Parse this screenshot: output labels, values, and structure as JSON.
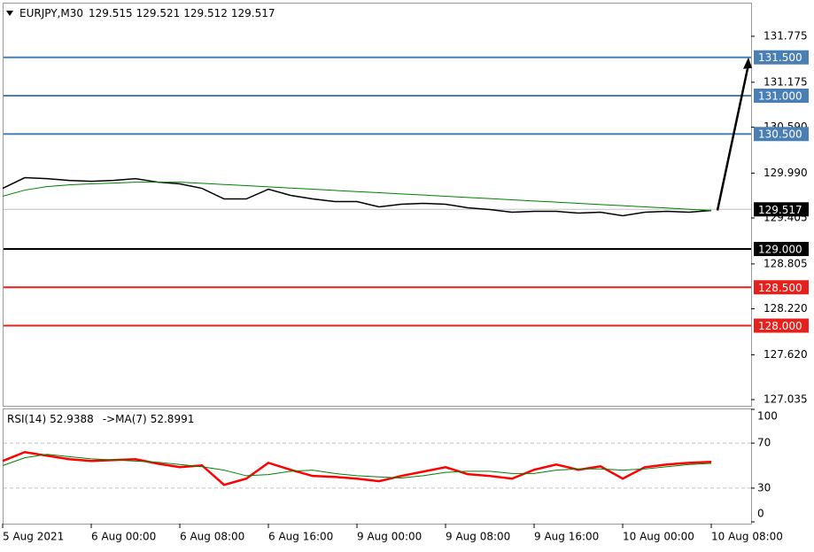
{
  "chart_data": [
    {
      "type": "line",
      "symbol": "EURJPY,M30",
      "quote": [
        129.515,
        129.521,
        129.512,
        129.517
      ],
      "categories": [
        "5 Aug 2021",
        null,
        null,
        null,
        "6 Aug 00:00",
        null,
        null,
        null,
        "6 Aug 08:00",
        null,
        null,
        null,
        "6 Aug 16:00",
        null,
        null,
        null,
        "9 Aug 00:00",
        null,
        null,
        null,
        "9 Aug 08:00",
        null,
        null,
        null,
        "9 Aug 16:00",
        null,
        null,
        null,
        "10 Aug 00:00",
        null,
        null,
        null,
        "10 Aug 08:00"
      ],
      "series": [
        {
          "color": "#000000",
          "values": [
            129.791,
            129.93,
            129.918,
            129.895,
            129.883,
            129.895,
            129.918,
            129.872,
            129.849,
            129.791,
            129.653,
            129.653,
            129.78,
            129.699,
            129.653,
            129.618,
            129.618,
            129.549,
            129.584,
            129.595,
            129.584,
            129.537,
            129.514,
            129.48,
            129.491,
            129.491,
            129.468,
            129.48,
            129.434,
            129.48,
            129.491,
            129.48,
            129.503
          ]
        },
        {
          "color": "#008000",
          "values": [
            129.688,
            129.768,
            129.814,
            129.837,
            129.849,
            129.86,
            129.872,
            129.872,
            129.872,
            129.857,
            129.841,
            129.826,
            129.81,
            129.795,
            129.78,
            129.764,
            129.749,
            129.734,
            129.718,
            129.703,
            129.688,
            129.672,
            129.657,
            129.641,
            129.626,
            129.611,
            129.595,
            129.58,
            129.565,
            129.549,
            129.534,
            129.518,
            129.503
          ]
        }
      ],
      "ylim": [
        126.954,
        132.202
      ],
      "yticks": [
        131.775,
        131.175,
        {
          "value": 130.59,
          "label": "130.590"
        },
        {
          "value": 129.99,
          "label": "129.990"
        },
        129.405,
        128.805,
        {
          "value": 128.22,
          "label": "128.220"
        },
        {
          "value": 127.62,
          "label": "127.620"
        },
        127.035
      ],
      "levels": [
        {
          "value": 131.5,
          "label": "131.500",
          "color": "#4a7fb5"
        },
        {
          "value": 131,
          "label": "131.000",
          "color": "#4a7fb5"
        },
        {
          "value": 130.5,
          "label": "130.500",
          "color": "#4a7fb5"
        },
        {
          "value": 129,
          "label": "129.000",
          "color": "#000000"
        },
        {
          "value": 128.5,
          "label": "128.500",
          "color": "#e8201c"
        },
        {
          "value": 128,
          "label": "128.000",
          "color": "#e8201c"
        }
      ],
      "current_price": {
        "value": 129.517,
        "label": "129.517"
      }
    },
    {
      "type": "line",
      "indicator": "RSI(14)",
      "indicator_value": 52.9388,
      "ma_label": "->MA(7)",
      "ma_value": 52.8991,
      "series": [
        {
          "color": "#ff0000",
          "values": [
            54.1,
            62.0,
            58.8,
            55.7,
            54.1,
            54.9,
            55.7,
            51.8,
            48.6,
            50.2,
            32.9,
            38.4,
            52.5,
            46.3,
            40.8,
            40.0,
            38.4,
            36.1,
            40.8,
            44.7,
            48.6,
            42.4,
            40.8,
            38.4,
            46.3,
            51.0,
            46.3,
            49.4,
            38.4,
            48.6,
            51.0,
            52.5,
            53.3
          ]
        },
        {
          "color": "#008000",
          "values": [
            50,
            57,
            60,
            58,
            56,
            55,
            54,
            53,
            51,
            49,
            46,
            41,
            42,
            45,
            46,
            43,
            41,
            40,
            39,
            41,
            44,
            45,
            45,
            43,
            43,
            46,
            47,
            47,
            46,
            47,
            49,
            51,
            52
          ]
        }
      ],
      "ylim": [
        0,
        100
      ],
      "yticks": [
        100,
        70,
        30,
        0
      ],
      "levels": [
        70,
        30
      ]
    }
  ]
}
